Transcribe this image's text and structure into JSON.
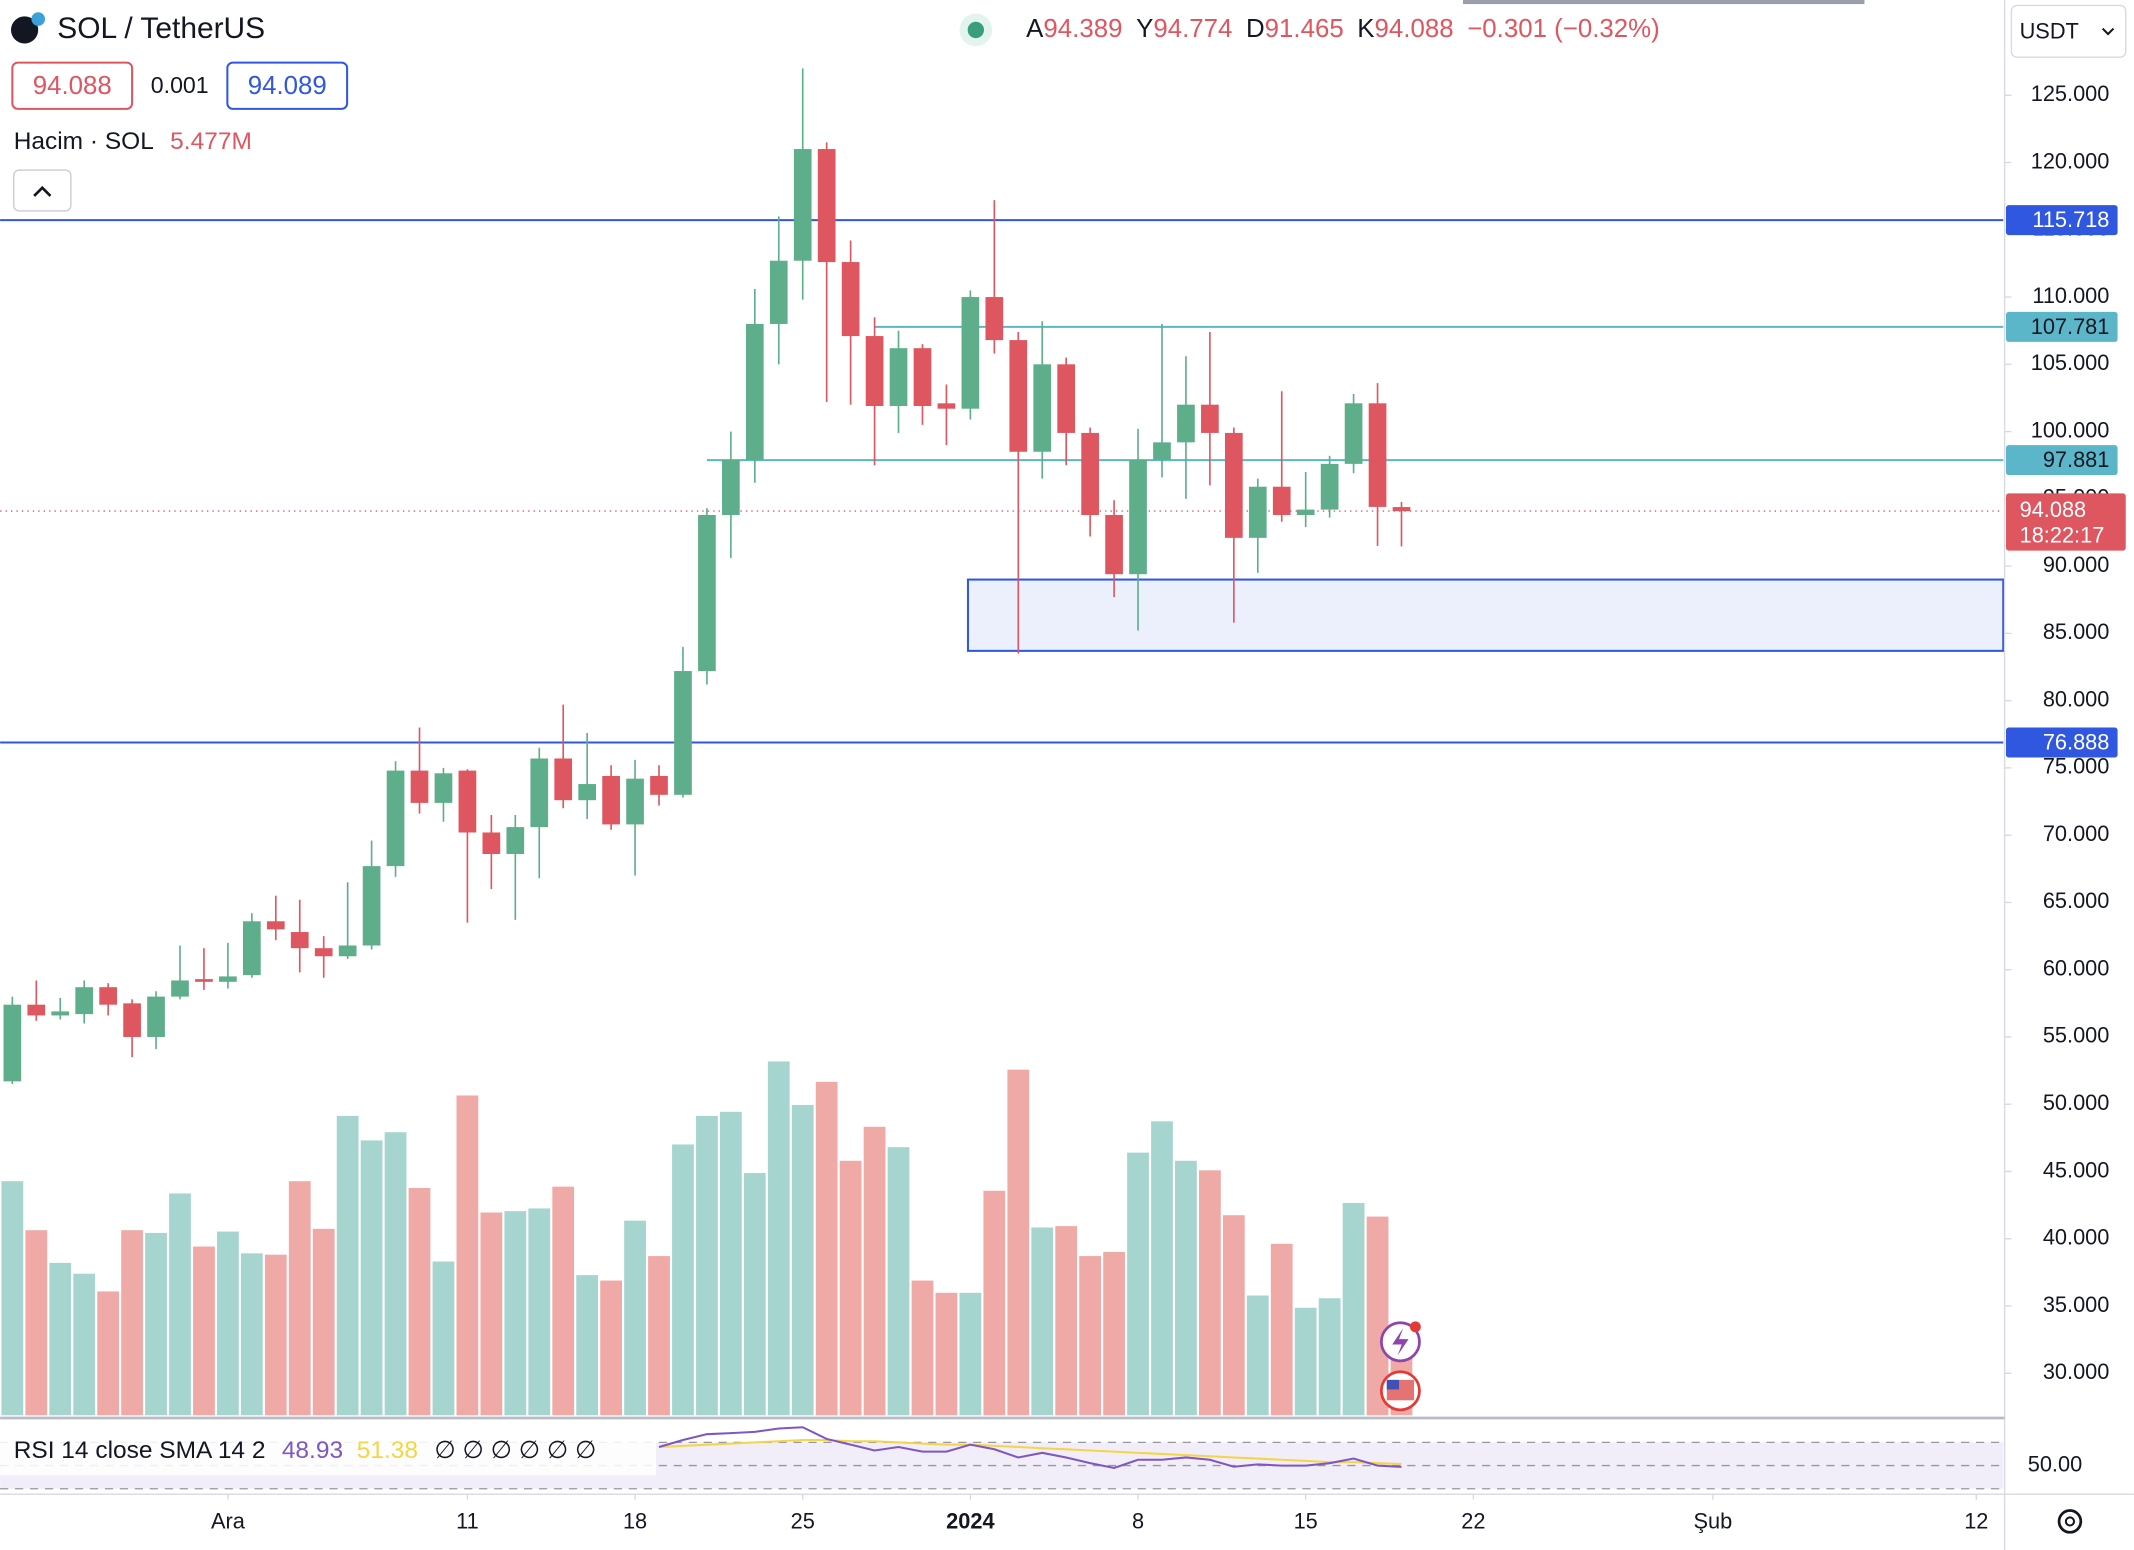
{
  "chart_data": {
    "type": "candlestick",
    "title": "SOL / TetherUS",
    "currency": "USDT",
    "legend": {
      "open_key": "A",
      "high_key": "Y",
      "low_key": "D",
      "close_key": "K",
      "change": "−0.301 (−0.32%)"
    },
    "quote": {
      "bid": 94.088,
      "spread": 0.001,
      "ask": 94.089
    },
    "countdown": "18:22:17",
    "colors": {
      "up": "#5fae8b",
      "down": "#de5660",
      "volume_up": "#a6d5d0",
      "volume_down": "#efaaa7",
      "price_line": "#de5660"
    },
    "open": [
      51.7,
      57.4,
      56.6,
      56.7,
      58.7,
      57.5,
      55.0,
      58.0,
      59.3,
      59.1,
      59.6,
      63.6,
      62.8,
      61.6,
      61.0,
      61.8,
      67.7,
      74.8,
      72.4,
      74.8,
      70.2,
      68.6,
      70.6,
      75.7,
      72.6,
      74.4,
      70.8,
      74.4,
      73.0,
      82.2,
      93.8,
      97.9,
      108.0,
      112.7,
      121.0,
      112.6,
      107.1,
      101.9,
      106.2,
      102.1,
      101.7,
      110.0,
      106.8,
      98.5,
      105.0,
      99.9,
      93.8,
      89.4,
      97.9,
      99.2,
      102.0,
      99.9,
      92.1,
      95.9,
      93.8,
      94.2,
      97.6,
      102.1,
      94.389
    ],
    "high": [
      58.0,
      59.2,
      57.9,
      59.2,
      59.0,
      57.8,
      58.4,
      61.8,
      61.6,
      62.0,
      64.2,
      65.5,
      65.2,
      62.5,
      66.5,
      69.6,
      75.5,
      78.0,
      75.0,
      74.9,
      71.5,
      71.5,
      76.5,
      79.7,
      77.6,
      75.2,
      75.6,
      75.2,
      84.0,
      94.3,
      100.0,
      110.6,
      116.0,
      127.0,
      121.5,
      114.2,
      108.5,
      107.5,
      106.5,
      103.5,
      110.5,
      117.2,
      107.4,
      108.2,
      105.5,
      100.3,
      94.9,
      100.2,
      108.0,
      105.6,
      107.4,
      100.3,
      96.5,
      103.0,
      97.0,
      98.2,
      102.8,
      103.6,
      94.774
    ],
    "low": [
      51.5,
      56.2,
      56.3,
      56.0,
      56.6,
      53.5,
      54.1,
      57.8,
      58.5,
      58.6,
      59.4,
      62.2,
      59.8,
      59.4,
      60.8,
      61.5,
      66.9,
      71.6,
      71.0,
      63.5,
      66.0,
      63.7,
      66.8,
      72.0,
      71.2,
      70.4,
      67.0,
      72.2,
      72.8,
      81.2,
      90.6,
      96.2,
      105.0,
      109.8,
      102.2,
      102.0,
      97.5,
      99.9,
      100.5,
      99.0,
      100.9,
      105.8,
      83.5,
      96.5,
      97.5,
      92.2,
      87.7,
      85.2,
      96.6,
      95.0,
      96.0,
      85.8,
      89.5,
      93.3,
      92.9,
      93.6,
      96.9,
      91.5,
      91.465
    ],
    "close": [
      57.4,
      56.6,
      56.9,
      58.7,
      57.4,
      55.0,
      58.0,
      59.2,
      59.1,
      59.5,
      63.6,
      63.0,
      61.6,
      61.0,
      61.8,
      67.7,
      74.8,
      72.4,
      74.6,
      70.2,
      68.6,
      70.6,
      75.7,
      72.6,
      73.8,
      70.8,
      74.2,
      73.0,
      82.2,
      93.8,
      97.9,
      108.0,
      112.7,
      121.0,
      112.6,
      107.1,
      101.9,
      106.2,
      101.9,
      101.7,
      110.0,
      106.8,
      98.5,
      105.0,
      99.9,
      93.8,
      89.4,
      97.9,
      99.2,
      102.0,
      99.9,
      92.1,
      95.9,
      93.8,
      94.2,
      97.6,
      102.1,
      94.4,
      94.088
    ],
    "volume": {
      "label": "Hacim · SOL",
      "value_label": "5.477M",
      "values": [
        17.2,
        13.6,
        11.2,
        10.4,
        9.1,
        13.6,
        13.4,
        16.3,
        12.4,
        13.5,
        11.9,
        11.8,
        17.2,
        13.7,
        22.0,
        20.2,
        20.8,
        16.7,
        11.3,
        23.5,
        14.9,
        15.0,
        15.2,
        16.8,
        10.3,
        9.9,
        14.3,
        11.7,
        19.9,
        22.0,
        22.3,
        17.8,
        26.0,
        22.8,
        24.5,
        18.7,
        21.2,
        19.7,
        9.9,
        9.0,
        9.0,
        16.5,
        25.4,
        13.8,
        13.9,
        11.7,
        12.0,
        19.3,
        21.6,
        18.7,
        18.0,
        14.7,
        8.8,
        12.6,
        7.9,
        8.6,
        15.6,
        14.6,
        5.477
      ]
    },
    "ylim": [
      26.88,
      132.08
    ],
    "yticks": [
      {
        "value": 125,
        "label": "125.000"
      },
      {
        "value": 120,
        "label": "120.000"
      },
      {
        "value": 115,
        "label": "115.000"
      },
      {
        "value": 110,
        "label": "110.000"
      },
      {
        "value": 105,
        "label": "105.000"
      },
      {
        "value": 100,
        "label": "100.000"
      },
      {
        "value": 95,
        "label": "95.000"
      },
      {
        "value": 90,
        "label": "90.000"
      },
      {
        "value": 85,
        "label": "85.000"
      },
      {
        "value": 80,
        "label": "80.000"
      },
      {
        "value": 75,
        "label": "75.000"
      },
      {
        "value": 70,
        "label": "70.000"
      },
      {
        "value": 65,
        "label": "65.000"
      },
      {
        "value": 60,
        "label": "60.000"
      },
      {
        "value": 55,
        "label": "55.000"
      },
      {
        "value": 50,
        "label": "50.000"
      },
      {
        "value": 45,
        "label": "45.000"
      },
      {
        "value": 40,
        "label": "40.000"
      },
      {
        "value": 35,
        "label": "35.000"
      },
      {
        "value": 30,
        "label": "30.000"
      }
    ],
    "xlim": [
      -0.511,
      83.125
    ],
    "xticks": [
      {
        "value": 9,
        "label": "Ara"
      },
      {
        "value": 19,
        "label": "11"
      },
      {
        "value": 26,
        "label": "18"
      },
      {
        "value": 33,
        "label": "25"
      },
      {
        "value": 40,
        "label": "2024",
        "bold": true
      },
      {
        "value": 47,
        "label": "8"
      },
      {
        "value": 54,
        "label": "15"
      },
      {
        "value": 61,
        "label": "22"
      },
      {
        "value": 71,
        "label": "Şub"
      },
      {
        "value": 82,
        "label": "12"
      }
    ],
    "lines": [
      {
        "value": 115.718,
        "x_start": -0.511,
        "color": "#3057e0"
      },
      {
        "value": 107.781,
        "x_start": 36,
        "color": "#5ab6c8"
      },
      {
        "value": 97.881,
        "x_start": 29,
        "color": "#5ab6c8"
      },
      {
        "value": 76.888,
        "x_start": -0.511,
        "color": "#3057e0"
      }
    ],
    "zone": {
      "low": 83.7,
      "high": 89.0,
      "x_start": 39.9,
      "color": "#3057e0"
    },
    "rsi": {
      "label": "RSI 14 close SMA 14 2",
      "symbols": "∅ ∅ ∅ ∅ ∅ ∅",
      "color": "#7e57c2",
      "sma_color": "#f5d547",
      "ylim": [
        28,
        87.5
      ],
      "yticks": [
        {
          "value": 50,
          "label": "50.00"
        }
      ],
      "levels": [
        70,
        50,
        30
      ],
      "values": [
        null,
        null,
        null,
        null,
        null,
        null,
        null,
        null,
        null,
        null,
        null,
        null,
        null,
        null,
        null,
        null,
        null,
        null,
        null,
        null,
        null,
        null,
        null,
        null,
        null,
        null,
        null,
        66,
        72,
        77,
        78,
        79,
        82,
        83,
        73,
        68,
        63,
        66,
        62,
        62,
        68,
        64,
        57,
        61,
        57,
        52,
        48,
        55,
        55,
        57,
        55,
        49,
        51,
        50,
        50,
        52,
        56,
        50,
        48.93
      ],
      "sma": [
        null,
        null,
        null,
        null,
        null,
        null,
        null,
        null,
        null,
        null,
        null,
        null,
        null,
        null,
        null,
        null,
        null,
        null,
        null,
        null,
        null,
        null,
        null,
        null,
        null,
        null,
        null,
        66,
        67,
        68,
        69,
        70,
        71,
        72,
        72,
        71,
        71,
        70,
        69,
        68,
        68,
        67,
        66,
        65,
        64,
        63,
        62,
        61,
        60,
        59,
        58,
        57,
        56,
        55,
        54,
        53,
        53,
        52,
        51.38
      ]
    }
  }
}
